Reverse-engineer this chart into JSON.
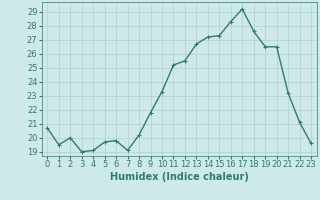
{
  "x": [
    0,
    1,
    2,
    3,
    4,
    5,
    6,
    7,
    8,
    9,
    10,
    11,
    12,
    13,
    14,
    15,
    16,
    17,
    18,
    19,
    20,
    21,
    22,
    23
  ],
  "y": [
    20.7,
    19.5,
    20.0,
    19.0,
    19.1,
    19.7,
    19.8,
    19.1,
    20.2,
    21.8,
    23.3,
    25.2,
    25.5,
    26.7,
    27.2,
    27.3,
    28.3,
    29.2,
    27.6,
    26.5,
    26.5,
    23.2,
    21.1,
    19.6
  ],
  "line_color": "#2e7d6e",
  "marker": "+",
  "marker_size": 3,
  "bg_color": "#ceeae8",
  "grid_color": "#b0d0ce",
  "xlabel": "Humidex (Indice chaleur)",
  "xlim": [
    -0.5,
    23.5
  ],
  "ylim": [
    18.7,
    29.7
  ],
  "yticks": [
    19,
    20,
    21,
    22,
    23,
    24,
    25,
    26,
    27,
    28,
    29
  ],
  "xticks": [
    0,
    1,
    2,
    3,
    4,
    5,
    6,
    7,
    8,
    9,
    10,
    11,
    12,
    13,
    14,
    15,
    16,
    17,
    18,
    19,
    20,
    21,
    22,
    23
  ],
  "label_fontsize": 7,
  "tick_fontsize": 6,
  "line_width": 1.0
}
